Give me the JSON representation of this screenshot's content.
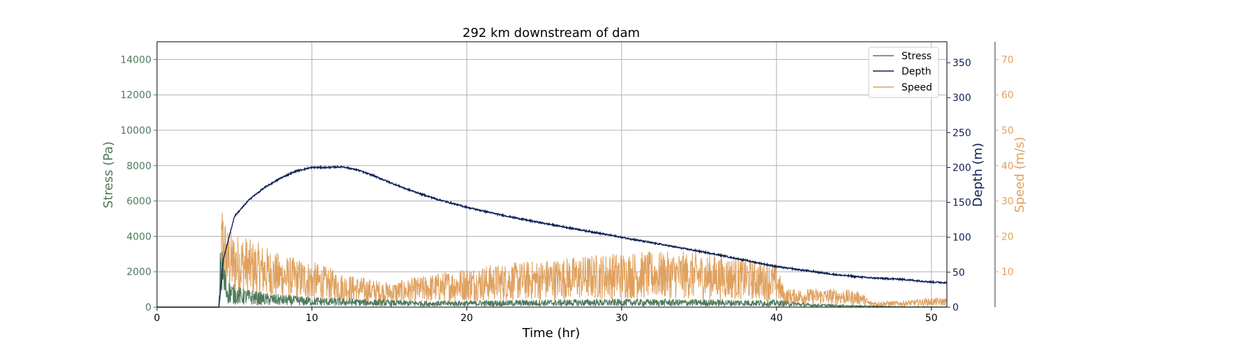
{
  "colors": {
    "stress": "#4e7a5c",
    "depth": "#0e1f55",
    "speed": "#e0a15f",
    "grid": "#b0b0b0",
    "text": "#000000"
  },
  "chart_data": {
    "type": "line",
    "title": "292 km downstream of dam",
    "xlabel": "Time (hr)",
    "xlim": [
      0,
      51
    ],
    "xticks": [
      0,
      10,
      20,
      30,
      40,
      50
    ],
    "grid": true,
    "legend_position": "top-right",
    "axes": {
      "stress": {
        "label": "Stress (Pa)",
        "ylim": [
          0,
          15000
        ],
        "ticks": [
          0,
          2000,
          4000,
          6000,
          8000,
          10000,
          12000,
          14000
        ]
      },
      "depth": {
        "label": "Depth (m)",
        "ylim": [
          0,
          380
        ],
        "ticks": [
          0,
          50,
          100,
          150,
          200,
          250,
          300,
          350
        ]
      },
      "speed": {
        "label": "Speed (m/s)",
        "ylim": [
          0,
          75
        ],
        "ticks": [
          10,
          20,
          30,
          40,
          50,
          60,
          70
        ]
      }
    },
    "series": [
      {
        "name": "Stress",
        "axis": "stress",
        "x": [
          0,
          4,
          4.1,
          4.5,
          5,
          5.5,
          6,
          7,
          8,
          10,
          12,
          15,
          18,
          20,
          25,
          30,
          35,
          40,
          42,
          45,
          48,
          51
        ],
        "y": [
          0,
          0,
          2200,
          900,
          700,
          600,
          550,
          450,
          400,
          320,
          280,
          230,
          200,
          210,
          240,
          260,
          250,
          230,
          120,
          60,
          20,
          10
        ]
      },
      {
        "name": "Depth",
        "axis": "depth",
        "x": [
          0,
          4,
          4.3,
          5,
          6,
          7,
          8,
          9,
          10,
          11,
          12,
          13,
          14,
          15,
          16,
          18,
          20,
          22,
          24,
          26,
          28,
          30,
          32,
          34,
          36,
          38,
          40,
          42,
          44,
          46,
          48,
          50,
          51
        ],
        "y": [
          0,
          0,
          70,
          130,
          155,
          172,
          185,
          195,
          200,
          200,
          201,
          196,
          188,
          179,
          170,
          155,
          143,
          133,
          124,
          116,
          108,
          100,
          92,
          84,
          76,
          67,
          58,
          52,
          46,
          42,
          40,
          36,
          35
        ]
      },
      {
        "name": "Speed",
        "axis": "speed",
        "x": [
          0,
          4,
          4.2,
          4.5,
          5,
          5.5,
          6,
          7,
          8,
          9,
          10,
          11,
          12,
          13,
          14,
          15,
          16,
          17,
          18,
          19,
          20,
          22,
          24,
          26,
          28,
          30,
          32,
          34,
          36,
          38,
          40,
          40.5,
          42,
          44,
          45.5,
          46,
          48,
          50,
          51
        ],
        "y": [
          0,
          0,
          18,
          13,
          12,
          12,
          11,
          10,
          8.5,
          8,
          7.5,
          6.5,
          5.5,
          5,
          4.5,
          4,
          4.5,
          5,
          5.5,
          6,
          6.5,
          7,
          7.5,
          8,
          8.5,
          9,
          9,
          9,
          8.5,
          8,
          7,
          3,
          3,
          3,
          2.5,
          1,
          1,
          1.5,
          1.5
        ]
      }
    ]
  }
}
